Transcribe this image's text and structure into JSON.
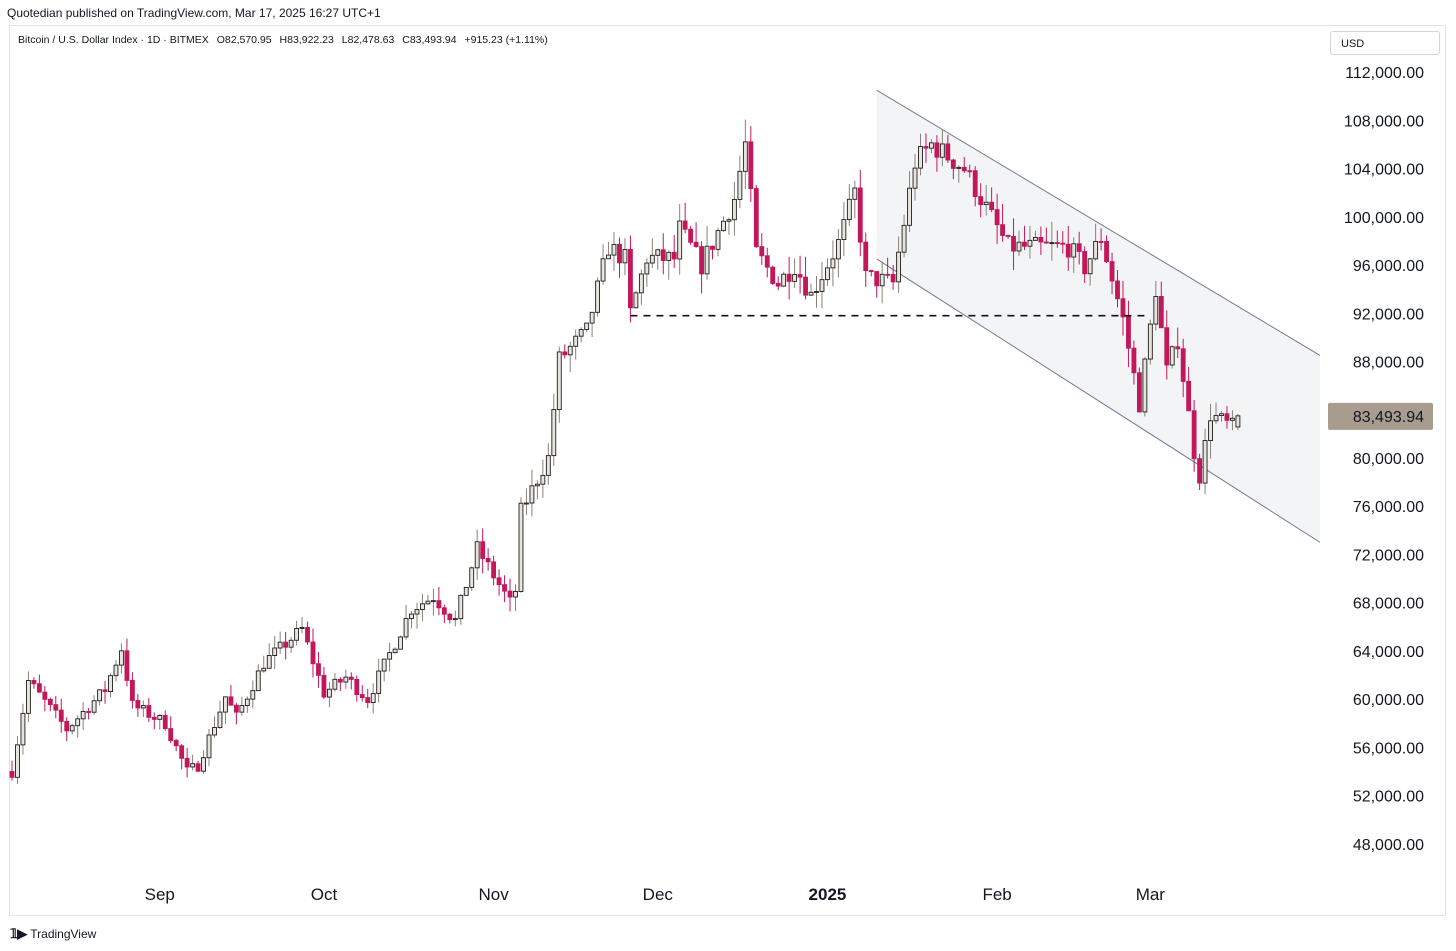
{
  "publisher_line": "Quotedian published on TradingView.com, Mar 17, 2025 16:27 UTC+1",
  "legend": {
    "symbol": "Bitcoin / U.S. Dollar Index · 1D · BITMEX",
    "open": "O82,570.95",
    "high": "H83,922.23",
    "low": "L82,478.63",
    "close": "C83,493.94",
    "change": "+915.23 (+1.11%)"
  },
  "currency_label": "USD",
  "footer": {
    "logo_icon": "tradingview-logo-icon",
    "brand": "TradingView"
  },
  "colors": {
    "up_body": "#b2a89c",
    "down_body": "#c2185b",
    "last_price_badge": "#a89c8f",
    "channel_fill": "#f3f4f6",
    "channel_line": "#6d7a8c"
  },
  "chart_data": {
    "type": "candlestick",
    "title": "Bitcoin / U.S. Dollar Index · 1D · BITMEX",
    "x_labels": [
      "Sep",
      "Oct",
      "Nov",
      "Dec",
      "2025",
      "Feb",
      "Mar"
    ],
    "x_label_dates": [
      "2024-09-01",
      "2024-10-01",
      "2024-11-01",
      "2024-12-01",
      "2025-01-01",
      "2025-02-01",
      "2025-03-01"
    ],
    "y_ticks": [
      48000,
      52000,
      56000,
      60000,
      64000,
      68000,
      72000,
      76000,
      80000,
      84000,
      88000,
      92000,
      96000,
      100000,
      104000,
      108000,
      112000
    ],
    "y_tick_labels": [
      "48,000.00",
      "52,000.00",
      "56,000.00",
      "60,000.00",
      "64,000.00",
      "68,000.00",
      "72,000.00",
      "76,000.00",
      "80,000.00",
      "84,000.00",
      "88,000.00",
      "92,000.00",
      "96,000.00",
      "100,000.00",
      "104,000.00",
      "108,000.00",
      "112,000.00"
    ],
    "ylim": [
      45000,
      114000
    ],
    "xlim": [
      "2024-08-05",
      "2025-04-01"
    ],
    "last_price": 83493.94,
    "last_price_label": "83,493.94",
    "start_date": "2024-08-05",
    "anchors": [
      [
        "2024-08-05",
        54000
      ],
      [
        "2024-08-08",
        61500
      ],
      [
        "2024-08-15",
        57500
      ],
      [
        "2024-08-22",
        60800
      ],
      [
        "2024-08-25",
        64200
      ],
      [
        "2024-08-27",
        59500
      ],
      [
        "2024-09-02",
        58000
      ],
      [
        "2024-09-06",
        54000
      ],
      [
        "2024-09-08",
        54500
      ],
      [
        "2024-09-13",
        60200
      ],
      [
        "2024-09-15",
        58500
      ],
      [
        "2024-09-20",
        63000
      ],
      [
        "2024-09-27",
        65800
      ],
      [
        "2024-10-01",
        60500
      ],
      [
        "2024-10-05",
        61800
      ],
      [
        "2024-10-09",
        60000
      ],
      [
        "2024-10-12",
        62800
      ],
      [
        "2024-10-17",
        67500
      ],
      [
        "2024-10-21",
        68500
      ],
      [
        "2024-10-25",
        66500
      ],
      [
        "2024-10-29",
        72500
      ],
      [
        "2024-11-04",
        68000
      ],
      [
        "2024-11-05",
        69000
      ],
      [
        "2024-11-06",
        75600
      ],
      [
        "2024-11-11",
        80000
      ],
      [
        "2024-11-13",
        88200
      ],
      [
        "2024-11-18",
        90500
      ],
      [
        "2024-11-22",
        97500
      ],
      [
        "2024-11-25",
        96500
      ],
      [
        "2024-11-26",
        92000
      ],
      [
        "2024-11-29",
        96600
      ],
      [
        "2024-12-04",
        96500
      ],
      [
        "2024-12-05",
        99000
      ],
      [
        "2024-12-09",
        96000
      ],
      [
        "2024-12-15",
        101500
      ],
      [
        "2024-12-17",
        106000
      ],
      [
        "2024-12-19",
        97000
      ],
      [
        "2024-12-23",
        94500
      ],
      [
        "2024-12-26",
        96000
      ],
      [
        "2024-12-29",
        93500
      ],
      [
        "2025-01-03",
        97800
      ],
      [
        "2025-01-06",
        102000
      ],
      [
        "2025-01-08",
        95000
      ],
      [
        "2025-01-13",
        94500
      ],
      [
        "2025-01-17",
        104500
      ],
      [
        "2025-01-20",
        106000
      ],
      [
        "2025-01-26",
        104000
      ],
      [
        "2025-02-03",
        97500
      ],
      [
        "2025-02-10",
        97500
      ],
      [
        "2025-02-14",
        97500
      ],
      [
        "2025-02-17",
        95800
      ],
      [
        "2025-02-20",
        98300
      ],
      [
        "2025-02-24",
        91500
      ],
      [
        "2025-02-27",
        84500
      ],
      [
        "2025-03-02",
        94000
      ],
      [
        "2025-03-04",
        87200
      ],
      [
        "2025-03-06",
        89800
      ],
      [
        "2025-03-09",
        80500
      ],
      [
        "2025-03-10",
        78500
      ],
      [
        "2025-03-12",
        83600
      ],
      [
        "2025-03-16",
        82570.95
      ],
      [
        "2025-03-17",
        83493.94
      ]
    ],
    "annotations": {
      "support_line": {
        "style": "dashed",
        "y": 91800,
        "from": "2024-11-26",
        "to": "2025-03-01"
      },
      "descending_channel": {
        "upper": [
          [
            "2025-01-10",
            110500
          ],
          [
            "2025-04-01",
            88500
          ]
        ],
        "lower": [
          [
            "2025-01-10",
            96500
          ],
          [
            "2025-04-01",
            73000
          ]
        ]
      }
    },
    "grid": false,
    "legend_position": "none"
  }
}
